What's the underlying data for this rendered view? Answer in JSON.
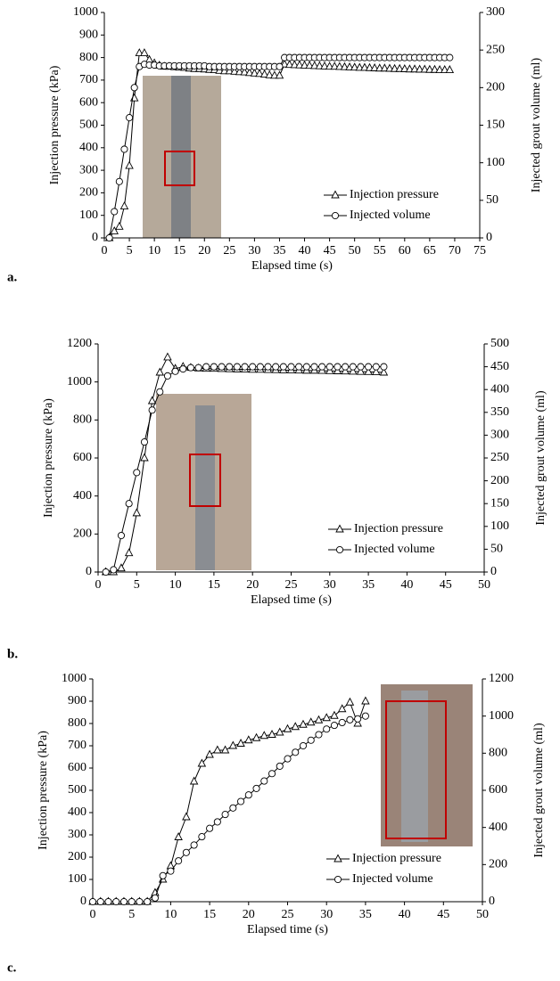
{
  "chart_data": [
    {
      "type": "line",
      "label": "a.",
      "xlabel": "Elapsed time (s)",
      "ylabel": "Injection pressure (kPa)",
      "y2label": "Injected grout volume (ml)",
      "legend": "lower right",
      "x": [
        1,
        2,
        3,
        4,
        5,
        6,
        7,
        8,
        9,
        10,
        11,
        12,
        13,
        14,
        15,
        16,
        17,
        18,
        19,
        20,
        21,
        22,
        23,
        24,
        25,
        26,
        27,
        28,
        29,
        30,
        31,
        32,
        33,
        34,
        35,
        36,
        37,
        38,
        39,
        40,
        41,
        42,
        43,
        44,
        45,
        46,
        47,
        48,
        49,
        50,
        51,
        52,
        53,
        54,
        55,
        56,
        57,
        58,
        59,
        60,
        61,
        62,
        63,
        64,
        65,
        66,
        67,
        68,
        69
      ],
      "xlim": [
        0,
        75
      ],
      "xticks": [
        0,
        5,
        10,
        15,
        20,
        25,
        30,
        35,
        40,
        45,
        50,
        55,
        60,
        65,
        70,
        75
      ],
      "ylim": [
        0,
        1000
      ],
      "yticks": [
        0,
        100,
        200,
        300,
        400,
        500,
        600,
        700,
        800,
        900,
        1000
      ],
      "y2lim": [
        0,
        300
      ],
      "y2ticks": [
        0,
        50,
        100,
        150,
        200,
        250,
        300
      ],
      "series": [
        {
          "name": "Injection pressure",
          "color": "#000000",
          "marker": "triangle",
          "values": [
            0,
            30,
            50,
            140,
            320,
            620,
            820,
            820,
            790,
            775,
            765,
            760,
            760,
            758,
            756,
            755,
            752,
            750,
            750,
            748,
            746,
            745,
            742,
            740,
            740,
            738,
            736,
            735,
            732,
            730,
            728,
            725,
            722,
            720,
            720,
            770,
            768,
            767,
            766,
            765,
            764,
            763,
            762,
            761,
            760,
            760,
            759,
            758,
            757,
            756,
            755,
            755,
            754,
            753,
            752,
            752,
            751,
            750,
            750,
            749,
            748,
            748,
            747,
            747,
            746,
            746,
            745,
            745,
            745
          ]
        },
        {
          "name": "Injected volume",
          "color": "#000000",
          "marker": "circle",
          "axis": "y2",
          "values": [
            0,
            35,
            75,
            118,
            160,
            200,
            228,
            231,
            230,
            230,
            229,
            229,
            229,
            229,
            229,
            229,
            229,
            229,
            229,
            229,
            228,
            228,
            228,
            228,
            228,
            228,
            228,
            228,
            228,
            228,
            228,
            228,
            228,
            228,
            228,
            240,
            240,
            240,
            240,
            240,
            240,
            240,
            240,
            240,
            240,
            240,
            240,
            240,
            240,
            240,
            240,
            240,
            240,
            240,
            240,
            240,
            240,
            240,
            240,
            240,
            240,
            240,
            240,
            240,
            240,
            240,
            240,
            240,
            240
          ]
        }
      ]
    },
    {
      "type": "line",
      "label": "b.",
      "xlabel": "Elapsed time (s)",
      "ylabel": "Injection pressure (kPa)",
      "y2label": "Injected grout volume (ml)",
      "legend": "lower right",
      "x": [
        1,
        2,
        3,
        4,
        5,
        6,
        7,
        8,
        9,
        10,
        11,
        12,
        13,
        14,
        15,
        16,
        17,
        18,
        19,
        20,
        21,
        22,
        23,
        24,
        25,
        26,
        27,
        28,
        29,
        30,
        31,
        32,
        33,
        34,
        35,
        36,
        37
      ],
      "xlim": [
        0,
        50
      ],
      "xticks": [
        0,
        5,
        10,
        15,
        20,
        25,
        30,
        35,
        40,
        45,
        50
      ],
      "ylim": [
        0,
        1200
      ],
      "yticks": [
        0,
        200,
        400,
        600,
        800,
        1000,
        1200
      ],
      "y2lim": [
        0,
        500
      ],
      "y2ticks": [
        0,
        50,
        100,
        150,
        200,
        250,
        300,
        350,
        400,
        450,
        500
      ],
      "series": [
        {
          "name": "Injection pressure",
          "color": "#000000",
          "marker": "triangle",
          "values": [
            0,
            0,
            20,
            100,
            310,
            600,
            900,
            1050,
            1130,
            1070,
            1080,
            1075,
            1072,
            1070,
            1070,
            1069,
            1068,
            1067,
            1066,
            1065,
            1065,
            1064,
            1063,
            1062,
            1062,
            1061,
            1060,
            1060,
            1059,
            1058,
            1057,
            1056,
            1055,
            1054,
            1053,
            1052,
            1050
          ]
        },
        {
          "name": "Injected volume",
          "color": "#000000",
          "marker": "circle",
          "axis": "y2",
          "values": [
            0,
            5,
            80,
            150,
            218,
            285,
            355,
            395,
            430,
            440,
            445,
            448,
            448,
            450,
            450,
            450,
            450,
            450,
            450,
            450,
            450,
            450,
            450,
            450,
            450,
            450,
            450,
            450,
            450,
            450,
            450,
            450,
            450,
            450,
            450,
            450,
            450
          ]
        }
      ]
    },
    {
      "type": "line",
      "label": "c.",
      "xlabel": "Elapsed time (s)",
      "ylabel": "Injection pressure (kPa)",
      "y2label": "Injected grout volume (ml)",
      "legend": "lower right",
      "x": [
        0,
        1,
        2,
        3,
        4,
        5,
        6,
        7,
        8,
        9,
        10,
        11,
        12,
        13,
        14,
        15,
        16,
        17,
        18,
        19,
        20,
        21,
        22,
        23,
        24,
        25,
        26,
        27,
        28,
        29,
        30,
        31,
        32,
        33,
        34,
        35
      ],
      "xlim": [
        0,
        50
      ],
      "xticks": [
        0,
        5,
        10,
        15,
        20,
        25,
        30,
        35,
        40,
        45,
        50
      ],
      "ylim": [
        0,
        1000
      ],
      "yticks": [
        0,
        100,
        200,
        300,
        400,
        500,
        600,
        700,
        800,
        900,
        1000
      ],
      "y2lim": [
        0,
        1200
      ],
      "y2ticks": [
        0,
        200,
        400,
        600,
        800,
        1000,
        1200
      ],
      "series": [
        {
          "name": "Injection pressure",
          "color": "#000000",
          "marker": "triangle",
          "values": [
            0,
            0,
            0,
            0,
            0,
            0,
            0,
            0,
            40,
            100,
            160,
            290,
            380,
            540,
            620,
            660,
            680,
            680,
            700,
            710,
            725,
            735,
            745,
            750,
            760,
            775,
            785,
            795,
            805,
            815,
            825,
            835,
            865,
            895,
            800,
            900
          ]
        },
        {
          "name": "Injected volume",
          "color": "#000000",
          "marker": "circle",
          "axis": "y2",
          "values": [
            0,
            0,
            0,
            0,
            0,
            0,
            0,
            0,
            20,
            140,
            165,
            220,
            265,
            305,
            350,
            395,
            430,
            470,
            505,
            540,
            575,
            610,
            650,
            690,
            730,
            770,
            805,
            840,
            870,
            900,
            930,
            950,
            965,
            980,
            985,
            1000
          ]
        }
      ]
    }
  ]
}
